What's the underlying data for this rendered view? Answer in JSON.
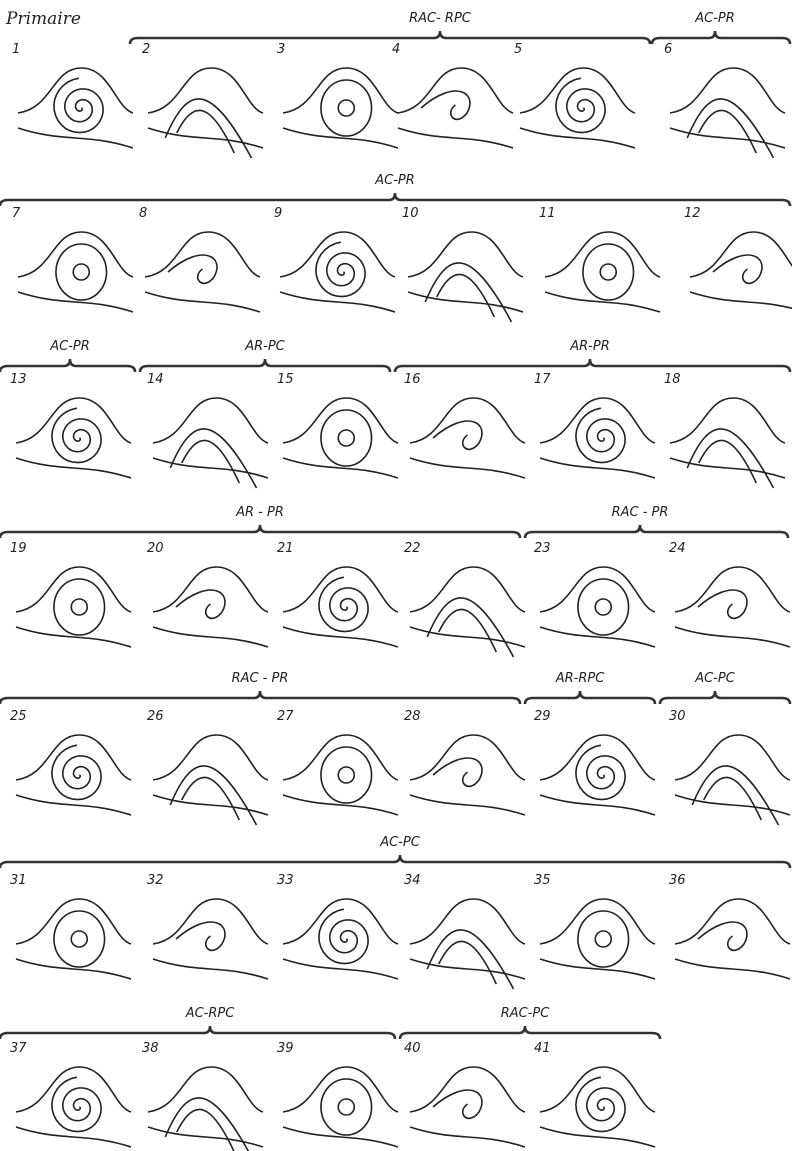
{
  "title": "Primaire",
  "groups": [
    {
      "label": "RAC- RPC"
    },
    {
      "label": "AC-PR"
    },
    {
      "label": "AC-PR"
    },
    {
      "label": "AC-PR"
    },
    {
      "label": "AR-PC"
    },
    {
      "label": "AR-PR"
    },
    {
      "label": "AR - PR"
    },
    {
      "label": "RAC - PR"
    },
    {
      "label": "RAC - PR"
    },
    {
      "label": "AR-RPC"
    },
    {
      "label": "AC-PC"
    },
    {
      "label": "AC-PC"
    },
    {
      "label": "AC-RPC"
    },
    {
      "label": "RAC-PC"
    }
  ],
  "panels": [
    {
      "label": "1"
    },
    {
      "label": "2"
    },
    {
      "label": "3"
    },
    {
      "label": "4"
    },
    {
      "label": "5"
    },
    {
      "label": "6"
    },
    {
      "label": "7"
    },
    {
      "label": "8"
    },
    {
      "label": "9"
    },
    {
      "label": "10"
    },
    {
      "label": "11"
    },
    {
      "label": "12"
    },
    {
      "label": "13"
    },
    {
      "label": "14"
    },
    {
      "label": "15"
    },
    {
      "label": "16"
    },
    {
      "label": "17"
    },
    {
      "label": "18"
    },
    {
      "label": "19"
    },
    {
      "label": "20"
    },
    {
      "label": "21"
    },
    {
      "label": "22"
    },
    {
      "label": "23"
    },
    {
      "label": "24"
    },
    {
      "label": "25"
    },
    {
      "label": "26"
    },
    {
      "label": "27"
    },
    {
      "label": "28"
    },
    {
      "label": "29"
    },
    {
      "label": "30"
    },
    {
      "label": "31"
    },
    {
      "label": "32"
    },
    {
      "label": "33"
    },
    {
      "label": "34"
    },
    {
      "label": "35"
    },
    {
      "label": "36"
    },
    {
      "label": "37"
    },
    {
      "label": "38"
    },
    {
      "label": "39"
    },
    {
      "label": "40"
    },
    {
      "label": "41"
    }
  ]
}
